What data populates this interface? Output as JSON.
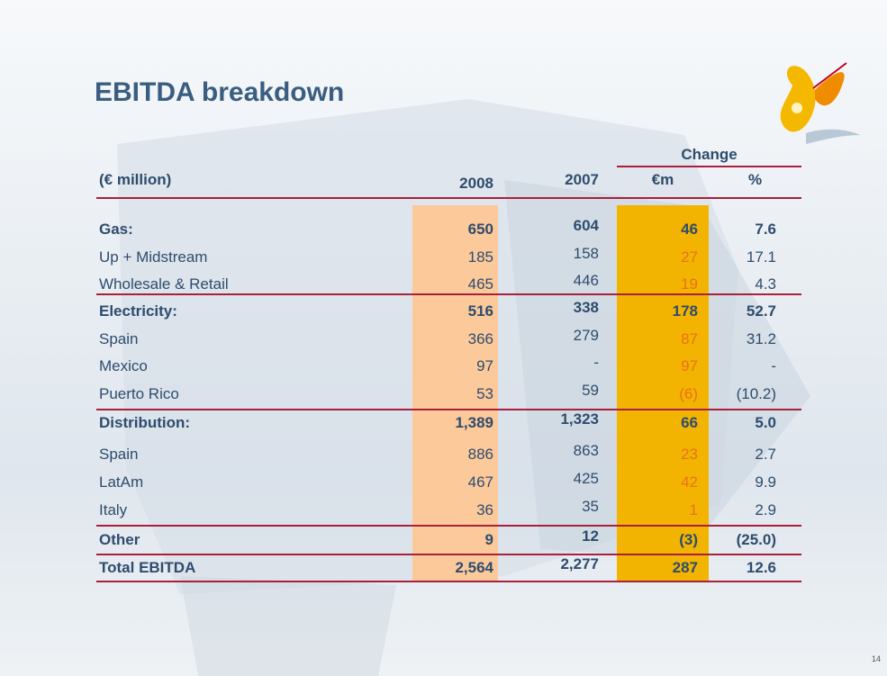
{
  "title": "EBITDA breakdown",
  "table": {
    "group_header": "Change",
    "columns": [
      "(€ million)",
      "2008",
      "2007",
      "€m",
      "%"
    ],
    "rows": [
      {
        "bold": true,
        "cells": [
          "Gas:",
          "650",
          "604",
          "46",
          "7.6"
        ]
      },
      {
        "bold": false,
        "cells": [
          "Up + Midstream",
          "185",
          "158",
          "27",
          "17.1"
        ]
      },
      {
        "bold": false,
        "cells": [
          "Wholesale & Retail",
          "465",
          "446",
          "19",
          "4.3"
        ]
      },
      {
        "bold": true,
        "cells": [
          "Electricity:",
          "516",
          "338",
          "178",
          "52.7"
        ]
      },
      {
        "bold": false,
        "cells": [
          "Spain",
          "366",
          "279",
          "87",
          "31.2"
        ]
      },
      {
        "bold": false,
        "cells": [
          "Mexico",
          "97",
          "-",
          "97",
          "-"
        ]
      },
      {
        "bold": false,
        "cells": [
          "Puerto Rico",
          "53",
          "59",
          "(6)",
          "(10.2)"
        ]
      },
      {
        "bold": true,
        "cells": [
          "Distribution:",
          "1,389",
          "1,323",
          "66",
          "5.0"
        ]
      },
      {
        "bold": false,
        "cells": [
          "Spain",
          "886",
          "863",
          "23",
          "2.7"
        ]
      },
      {
        "bold": false,
        "cells": [
          "LatAm",
          "467",
          "425",
          "42",
          "9.9"
        ]
      },
      {
        "bold": false,
        "cells": [
          "Italy",
          "36",
          "35",
          "1",
          "2.9"
        ]
      },
      {
        "bold": true,
        "cells": [
          "Other",
          "9",
          "12",
          "(3)",
          "(25.0)"
        ]
      },
      {
        "bold": true,
        "cells": [
          "Total EBITDA",
          "2,564",
          "2,277",
          "287",
          "12.6"
        ]
      }
    ]
  },
  "page_number": "14"
}
